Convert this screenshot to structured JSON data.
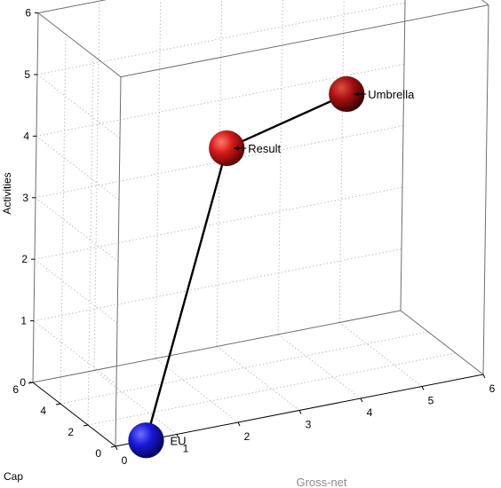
{
  "chart_data": {
    "type": "scatter3d",
    "x_axis": {
      "label": "Gross-net",
      "range": [
        0,
        6
      ],
      "ticks": [
        "0",
        "1",
        "2",
        "3",
        "4",
        "5",
        "6"
      ]
    },
    "y_axis": {
      "label": "Cap",
      "range": [
        0,
        6
      ],
      "ticks": [
        "0",
        "2",
        "4",
        "6"
      ]
    },
    "z_axis": {
      "label": "Activities",
      "range": [
        0,
        6
      ],
      "ticks": [
        "0",
        "1",
        "2",
        "3",
        "4",
        "5",
        "6"
      ]
    },
    "grid": true,
    "connected": true,
    "points": [
      {
        "label": "EU",
        "x": 0.5,
        "y": 0,
        "z": 0,
        "color": "#1010c8"
      },
      {
        "label": "Result",
        "x": 1.75,
        "y": 0,
        "z": 4.5,
        "color": "#d41818"
      },
      {
        "label": "Umbrella",
        "x": 3.7,
        "y": 0,
        "z": 5.0,
        "color": "#b01010"
      }
    ]
  },
  "colors": {
    "marker_blue": "#1010c8",
    "marker_red": "#d41818",
    "marker_darkred": "#b01010",
    "grid": "#bdbdbd",
    "line": "#000000"
  }
}
